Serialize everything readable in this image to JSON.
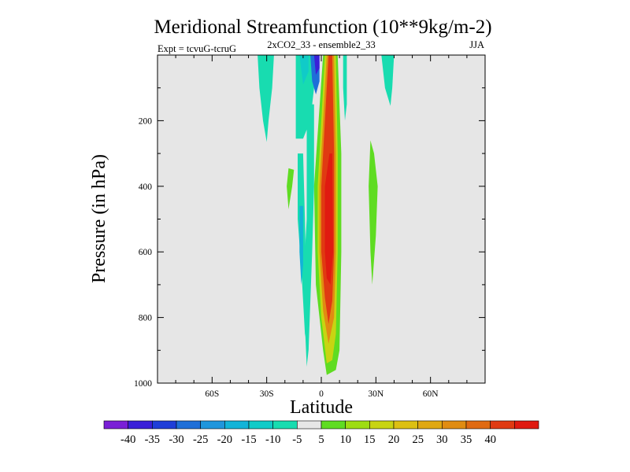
{
  "chart_data": {
    "type": "contour",
    "title": "Meridional Streamfunction (10**9kg/m-2)",
    "subtitle_left": "Expt = tcvuG-tcruG",
    "subtitle_center": "2xCO2_33 - ensemble2_33",
    "subtitle_right": "JJA",
    "xlabel": "Latitude",
    "ylabel": "Pressure (in hPa)",
    "xlim": [
      -90,
      90
    ],
    "ylim": [
      1000,
      0
    ],
    "x_ticks": [
      {
        "value": -60,
        "label": "60S"
      },
      {
        "value": -30,
        "label": "30S"
      },
      {
        "value": 0,
        "label": "0"
      },
      {
        "value": 30,
        "label": "30N"
      },
      {
        "value": 60,
        "label": "60N"
      }
    ],
    "y_ticks": [
      {
        "value": 200,
        "label": "200"
      },
      {
        "value": 400,
        "label": "400"
      },
      {
        "value": 600,
        "label": "600"
      },
      {
        "value": 800,
        "label": "800"
      },
      {
        "value": 1000,
        "label": "1000"
      }
    ],
    "background_color": "#e6e6e6",
    "colorbar": {
      "levels": [
        {
          "label": "-40",
          "color": "#7a1fd6"
        },
        {
          "label": "-35",
          "color": "#3a1fd8"
        },
        {
          "label": "-30",
          "color": "#1f3ed8"
        },
        {
          "label": "-25",
          "color": "#1f6fd8"
        },
        {
          "label": "-20",
          "color": "#1f96dc"
        },
        {
          "label": "-15",
          "color": "#12b4d8"
        },
        {
          "label": "-10",
          "color": "#10cbc8"
        },
        {
          "label": "-5",
          "color": "#18dcb0"
        },
        {
          "label": "5",
          "color": "#e6e6e6"
        },
        {
          "label": "10",
          "color": "#5fdc22"
        },
        {
          "label": "15",
          "color": "#9edc12"
        },
        {
          "label": "20",
          "color": "#c8d412"
        },
        {
          "label": "25",
          "color": "#dcc012"
        },
        {
          "label": "30",
          "color": "#e0a812"
        },
        {
          "label": "35",
          "color": "#e08c12"
        },
        {
          "label": "40",
          "color": "#e06a12"
        }
      ],
      "extra_colors": [
        "#e03a12",
        "#e01a10"
      ]
    },
    "regions": [
      {
        "name": "sh-cell-left",
        "color": "#18dcb0",
        "points": [
          [
            -35,
            0
          ],
          [
            -26,
            0
          ],
          [
            -27,
            100
          ],
          [
            -29,
            200
          ],
          [
            -30,
            265
          ],
          [
            -32,
            200
          ],
          [
            -34,
            100
          ]
        ]
      },
      {
        "name": "sh-cell-tail-a",
        "color": "#18dcb0",
        "points": [
          [
            -14,
            0
          ],
          [
            -4,
            0
          ],
          [
            -4,
            100
          ],
          [
            -6,
            200
          ],
          [
            -10,
            255
          ],
          [
            -14,
            255
          ],
          [
            -14,
            100
          ]
        ]
      },
      {
        "name": "sh-cell-tail-b",
        "color": "#18dcb0",
        "points": [
          [
            -8,
            150
          ],
          [
            -4,
            150
          ],
          [
            -4,
            400
          ],
          [
            -5,
            600
          ],
          [
            -7,
            900
          ],
          [
            -8,
            950
          ],
          [
            -10,
            700
          ],
          [
            -8,
            500
          ],
          [
            -8,
            300
          ]
        ]
      },
      {
        "name": "sh-cell-core",
        "color": "#1f6fd8",
        "points": [
          [
            -6,
            0
          ],
          [
            -1,
            0
          ],
          [
            -1,
            80
          ],
          [
            -3,
            120
          ],
          [
            -5,
            80
          ]
        ]
      },
      {
        "name": "sh-cell-core-inner",
        "color": "#3a1fd8",
        "points": [
          [
            -4,
            0
          ],
          [
            -1,
            0
          ],
          [
            -1,
            40
          ],
          [
            -3,
            60
          ]
        ]
      },
      {
        "name": "sh-cell-mid",
        "color": "#10cbc8",
        "points": [
          [
            -12,
            0
          ],
          [
            -7,
            0
          ],
          [
            -7,
            50
          ],
          [
            -10,
            90
          ]
        ]
      },
      {
        "name": "sh-lower-band",
        "color": "#18dcb0",
        "points": [
          [
            -13,
            300
          ],
          [
            -10,
            300
          ],
          [
            -9,
            500
          ],
          [
            -8,
            750
          ],
          [
            -7,
            900
          ],
          [
            -9,
            850
          ],
          [
            -11,
            650
          ],
          [
            -13,
            500
          ]
        ]
      },
      {
        "name": "sh-lower-blue",
        "color": "#12b4d8",
        "points": [
          [
            -12,
            460
          ],
          [
            -10,
            460
          ],
          [
            -10,
            640
          ],
          [
            -11,
            700
          ],
          [
            -12,
            600
          ]
        ]
      },
      {
        "name": "main-cell-outer",
        "color": "#5fdc22",
        "points": [
          [
            1,
            0
          ],
          [
            9,
            0
          ],
          [
            11,
            300
          ],
          [
            11,
            600
          ],
          [
            10,
            900
          ],
          [
            8,
            960
          ],
          [
            3,
            975
          ],
          [
            1,
            900
          ],
          [
            -3,
            700
          ],
          [
            -4,
            400
          ]
        ]
      },
      {
        "name": "main-cell-yellow",
        "color": "#c8d412",
        "points": [
          [
            2,
            0
          ],
          [
            8,
            0
          ],
          [
            9,
            300
          ],
          [
            9,
            600
          ],
          [
            8,
            850
          ],
          [
            6,
            930
          ],
          [
            3,
            940
          ],
          [
            0,
            800
          ],
          [
            -2,
            600
          ],
          [
            -2,
            400
          ]
        ]
      },
      {
        "name": "main-cell-orange",
        "color": "#e08c12",
        "points": [
          [
            3,
            0
          ],
          [
            7,
            0
          ],
          [
            8,
            300
          ],
          [
            8,
            600
          ],
          [
            7,
            800
          ],
          [
            4,
            880
          ],
          [
            1,
            780
          ],
          [
            -1,
            600
          ],
          [
            -1,
            400
          ]
        ]
      },
      {
        "name": "main-cell-red",
        "color": "#e03a12",
        "points": [
          [
            4,
            0
          ],
          [
            6,
            0
          ],
          [
            7,
            300
          ],
          [
            7,
            600
          ],
          [
            6,
            750
          ],
          [
            4,
            820
          ],
          [
            2,
            740
          ],
          [
            0,
            600
          ],
          [
            0,
            400
          ]
        ]
      },
      {
        "name": "main-cell-core",
        "color": "#e01a10",
        "points": [
          [
            4.5,
            300
          ],
          [
            6,
            300
          ],
          [
            6.5,
            600
          ],
          [
            5,
            700
          ],
          [
            3,
            680
          ],
          [
            2,
            600
          ],
          [
            2,
            400
          ]
        ]
      },
      {
        "name": "sh-pos-blob",
        "color": "#5fdc22",
        "points": [
          [
            -18,
            345
          ],
          [
            -15,
            350
          ],
          [
            -16,
            400
          ],
          [
            -18,
            470
          ],
          [
            -19,
            400
          ]
        ]
      },
      {
        "name": "nh-pos-blob",
        "color": "#5fdc22",
        "points": [
          [
            27,
            260
          ],
          [
            29,
            300
          ],
          [
            31,
            400
          ],
          [
            30,
            550
          ],
          [
            28,
            700
          ],
          [
            27,
            600
          ],
          [
            26,
            400
          ]
        ]
      },
      {
        "name": "nh-neg-cell",
        "color": "#18dcb0",
        "points": [
          [
            33,
            0
          ],
          [
            40,
            0
          ],
          [
            39,
            100
          ],
          [
            38,
            155
          ],
          [
            35,
            100
          ]
        ]
      },
      {
        "name": "nh-neg-strip",
        "color": "#18dcb0",
        "points": [
          [
            12,
            0
          ],
          [
            14,
            0
          ],
          [
            14,
            150
          ],
          [
            13,
            200
          ],
          [
            12,
            100
          ]
        ]
      }
    ]
  }
}
